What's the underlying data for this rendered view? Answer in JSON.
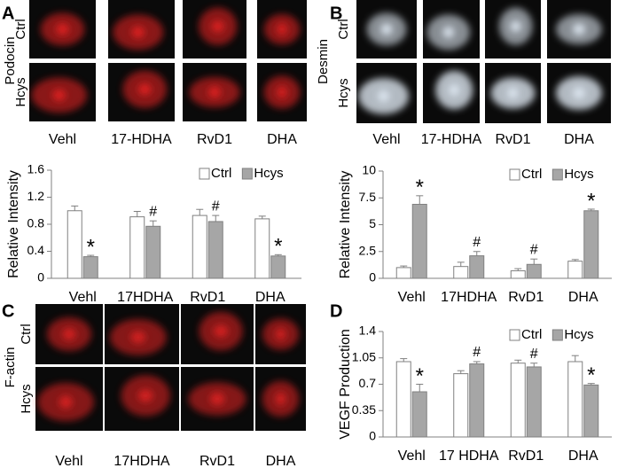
{
  "panel_labels": [
    "A",
    "B",
    "C",
    "D"
  ],
  "images": [
    {
      "stain": "Podocin",
      "rows": [
        "Ctrl",
        "Hcys"
      ],
      "columns": [
        "Vehl",
        "17-HDHA",
        "RvD1",
        "DHA"
      ]
    },
    {
      "stain": "Desmin",
      "rows": [
        "Ctrl",
        "Hcys"
      ],
      "columns": [
        "Vehl",
        "17-HDHA",
        "RvD1",
        "DHA"
      ]
    },
    {
      "stain": "F-actin",
      "rows": [
        "Ctrl",
        "Hcys"
      ],
      "columns": [
        "Vehl",
        "17HDHA",
        "RvD1",
        "DHA"
      ]
    }
  ],
  "chart_data": [
    {
      "type": "bar",
      "ylabel": "Relative Intensity",
      "categories": [
        "Vehl",
        "17HDHA",
        "RvD1",
        "DHA"
      ],
      "series": [
        {
          "name": "Ctrl",
          "color": "#ffffff",
          "values": [
            1.0,
            0.91,
            0.93,
            0.88
          ],
          "errors": [
            0.07,
            0.08,
            0.09,
            0.04
          ]
        },
        {
          "name": "Hcys",
          "color": "#a6a6a6",
          "values": [
            0.32,
            0.77,
            0.84,
            0.33
          ],
          "errors": [
            0.02,
            0.08,
            0.09,
            0.02
          ],
          "annotations": [
            "*",
            "#",
            "#",
            "*"
          ]
        }
      ],
      "ylim": [
        0,
        1.6
      ],
      "yticks": [
        0,
        0.4,
        0.8,
        1.2,
        1.6
      ],
      "legend": "upper right"
    },
    {
      "type": "bar",
      "ylabel": "Relative Intensity",
      "categories": [
        "Vehl",
        "17HDHA",
        "RvD1",
        "DHA"
      ],
      "series": [
        {
          "name": "Ctrl",
          "color": "#ffffff",
          "values": [
            1.0,
            1.1,
            0.7,
            1.6
          ],
          "errors": [
            0.15,
            0.4,
            0.2,
            0.15
          ]
        },
        {
          "name": "Hcys",
          "color": "#a6a6a6",
          "values": [
            6.9,
            2.1,
            1.3,
            6.3
          ],
          "errors": [
            0.8,
            0.4,
            0.5,
            0.15
          ],
          "annotations": [
            "*",
            "#",
            "#",
            "*"
          ]
        }
      ],
      "ylim": [
        0,
        10
      ],
      "yticks": [
        0,
        2.5,
        5,
        7.5,
        10
      ],
      "legend": "upper right"
    },
    {
      "type": "bar",
      "ylabel": "VEGF Production",
      "categories": [
        "Vehl",
        "17 HDHA",
        "RvD1",
        "DHA"
      ],
      "series": [
        {
          "name": "Ctrl",
          "color": "#ffffff",
          "values": [
            1.0,
            0.84,
            0.98,
            1.0
          ],
          "errors": [
            0.04,
            0.04,
            0.04,
            0.08
          ]
        },
        {
          "name": "Hcys",
          "color": "#a6a6a6",
          "values": [
            0.6,
            0.97,
            0.93,
            0.69
          ],
          "errors": [
            0.1,
            0.03,
            0.05,
            0.02
          ],
          "annotations": [
            "*",
            "#",
            "#",
            "*"
          ]
        }
      ],
      "ylim": [
        0,
        1.4
      ],
      "yticks": [
        0,
        0.35,
        0.7,
        1.05,
        1.4
      ],
      "legend": "upper right"
    }
  ]
}
